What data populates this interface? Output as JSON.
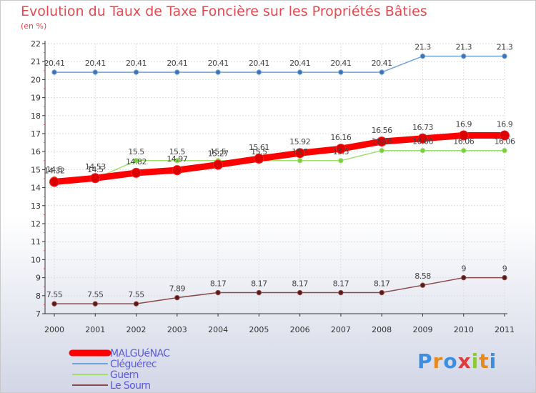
{
  "chart_data": {
    "type": "line",
    "title": "Evolution du Taux de Taxe Foncière sur les Propriétés Bâties",
    "unit_label": "(en %)",
    "xlabel": "",
    "ylabel": "",
    "ylim": [
      7,
      22
    ],
    "yticks": [
      7,
      8,
      9,
      10,
      11,
      12,
      13,
      14,
      15,
      16,
      17,
      18,
      19,
      20,
      21,
      22
    ],
    "grid": true,
    "legend": "bottom-left",
    "x": [
      "2000",
      "2001",
      "2002",
      "2003",
      "2004",
      "2005",
      "2006",
      "2007",
      "2008",
      "2009",
      "2010",
      "2011"
    ],
    "series": [
      {
        "name": "Cléguérec",
        "color": "#6ea3d7",
        "marker": "#3d72b5",
        "values": [
          20.41,
          20.41,
          20.41,
          20.41,
          20.41,
          20.41,
          20.41,
          20.41,
          20.41,
          21.3,
          21.3,
          21.3
        ],
        "labels": [
          "20.41",
          "20.41",
          "20.41",
          "20.41",
          "20.41",
          "20.41",
          "20.41",
          "20.41",
          "20.41",
          "21.3",
          "21.3",
          "21.3"
        ]
      },
      {
        "name": "Guern",
        "color": "#9ee06c",
        "marker": "#7ccc3e",
        "values": [
          14.5,
          14.5,
          15.5,
          15.5,
          15.5,
          15.5,
          15.5,
          15.5,
          16.06,
          16.06,
          16.06,
          16.06
        ],
        "labels": [
          "14.5",
          "14.5",
          "15.5",
          "15.5",
          "15.5",
          "15.5",
          "15.5",
          "15.5",
          "16.06",
          "16.06",
          "16.06",
          "16.06"
        ]
      },
      {
        "name": "Le Sourn",
        "color": "#8a4a4a",
        "marker": "#5b1818",
        "values": [
          7.55,
          7.55,
          7.55,
          7.89,
          8.17,
          8.17,
          8.17,
          8.17,
          8.17,
          8.58,
          9,
          9
        ],
        "labels": [
          "7.55",
          "7.55",
          "7.55",
          "7.89",
          "8.17",
          "8.17",
          "8.17",
          "8.17",
          "8.17",
          "8.58",
          "9",
          "9"
        ]
      },
      {
        "name": "MALGUéNAC",
        "color": "#ff0000",
        "marker": "#dd0000",
        "bold": true,
        "values": [
          14.32,
          14.53,
          14.82,
          14.97,
          15.27,
          15.61,
          15.92,
          16.16,
          16.56,
          16.73,
          16.9,
          16.9
        ],
        "labels": [
          "14.32",
          "14.53",
          "14.82",
          "14.97",
          "15.27",
          "15.61",
          "15.92",
          "16.16",
          "16.56",
          "16.73",
          "16.9",
          "16.9"
        ]
      }
    ],
    "legend_entries": [
      {
        "name": "MALGUéNAC",
        "color": "#ff0000",
        "text_color": "#5a5adc",
        "bold": true
      },
      {
        "name": "Cléguérec",
        "color": "#6ea3d7",
        "text_color": "#5a5adc"
      },
      {
        "name": "Guern",
        "color": "#9ee06c",
        "text_color": "#5a5adc"
      },
      {
        "name": "Le Sourn",
        "color": "#8a4a4a",
        "text_color": "#5a5adc"
      }
    ]
  },
  "logo": {
    "text": "Proxiti",
    "letter_colors": [
      "#3d8ee0",
      "#e58a1f",
      "#3d8ee0",
      "#e03c3c",
      "#8fc83a",
      "#e58a1f",
      "#3d8ee0"
    ]
  }
}
